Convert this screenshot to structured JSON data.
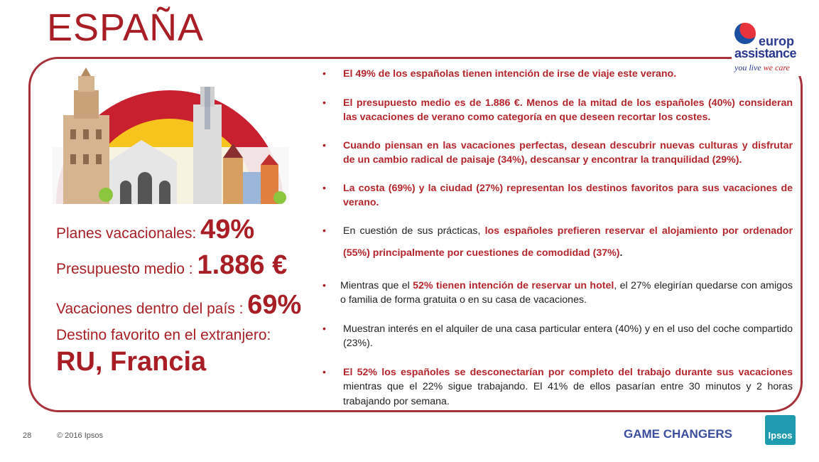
{
  "title": "ESPAÑA",
  "logo": {
    "line1": "europ",
    "line2": "assistance",
    "tag1": "you live ",
    "tag2": "we care"
  },
  "stats": [
    {
      "label": "Planes vacacionales: ",
      "value": "49%"
    },
    {
      "label": "Presupuesto medio : ",
      "value": "1.886 €"
    },
    {
      "label": "Vacaciones dentro del país : ",
      "value": "69%"
    },
    {
      "label": "Destino favorito en el extranjero:",
      "value": "RU, Francia"
    }
  ],
  "bullets": [
    {
      "red": "El 49% de los españolas tienen intención de irse de viaje este verano."
    },
    {
      "red": "El presupuesto medio es de 1.886 €. Menos de la mitad de los españoles (40%) consideran las vacaciones de verano como categoría en que deseen recortar los costes."
    },
    {
      "red": "Cuando piensan en las vacaciones perfectas, desean descubrir nuevas culturas y disfrutar de un cambio radical de paisaje (34%), descansar y encontrar la tranquilidad (29%)."
    },
    {
      "red": "La costa (69%) y la ciudad (27%) representan los destinos favoritos para sus vacaciones de verano."
    },
    {
      "pre": "En cuestión de sus prácticas, ",
      "red": "los españoles prefieren reservar el alojamiento por ordenador (55%) principalmente por cuestiones de comodidad (37%)",
      "post": "."
    },
    {
      "pre": "Mientras que el ",
      "red": "52% tienen intención de reservar un hotel",
      "post": ", el 27% elegirían quedarse con amigos o familia de forma gratuita o en su casa de vacaciones."
    },
    {
      "pre": "Muestran interés en el alquiler de una casa particular entera (40%) y en el uso del coche compartido (23%)."
    },
    {
      "red": "El 52% los españoles se desconectarían por completo del trabajo durante sus vacaciones",
      "post": " mientras que el 22% sigue trabajando. El 41% de ellos pasarían entre 30 minutos y 2 horas trabajando por semana."
    }
  ],
  "footer": {
    "page": "28",
    "copyright": "© 2016 Ipsos",
    "tagline": "GAME CHANGERS",
    "brand": "Ipsos"
  }
}
